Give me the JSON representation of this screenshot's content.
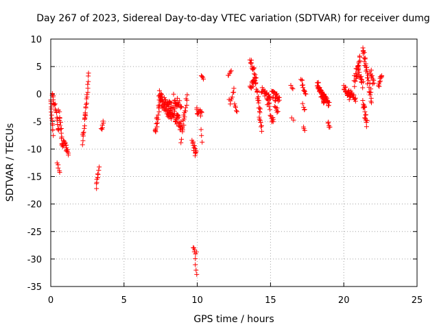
{
  "chart_data": {
    "type": "scatter",
    "title": "Day 267 of 2023, Sidereal Day-to-day VTEC variation (SDTVAR) for receiver dumg",
    "xlabel": "GPS time / hours",
    "ylabel": "SDTVAR / TECUs",
    "xlim": [
      0,
      25
    ],
    "ylim": [
      -35,
      10
    ],
    "xticks": [
      0,
      5,
      10,
      15,
      20,
      25
    ],
    "yticks": [
      10,
      5,
      0,
      -5,
      -10,
      -15,
      -20,
      -25,
      -30,
      -35
    ],
    "xtick_labels": [
      "0",
      "5",
      "10",
      "15",
      "20",
      "25"
    ],
    "ytick_labels": [
      "10",
      "5",
      "0",
      "-5",
      "-10",
      "-15",
      "-20",
      "-25",
      "-30",
      "-35"
    ],
    "grid": true,
    "marker": "+",
    "series": [
      {
        "name": "SDTVAR",
        "color": "#ff0000",
        "tracks": [
          {
            "x_start": 0.0,
            "x_end": 0.15,
            "y_start": -1.0,
            "y_end": -7.0,
            "jitter": 0.6,
            "n": 14
          },
          {
            "x_start": 0.1,
            "x_end": 0.25,
            "y_start": 0.0,
            "y_end": -2.0,
            "jitter": 0.4,
            "n": 8
          },
          {
            "x_start": 0.3,
            "x_end": 0.55,
            "y_start": -2.0,
            "y_end": -7.0,
            "jitter": 0.5,
            "n": 12
          },
          {
            "x_start": 0.45,
            "x_end": 0.6,
            "y_start": -12.5,
            "y_end": -14.5,
            "jitter": 0.3,
            "n": 5
          },
          {
            "x_start": 0.55,
            "x_end": 0.75,
            "y_start": -3.0,
            "y_end": -8.0,
            "jitter": 0.6,
            "n": 12
          },
          {
            "x_start": 0.75,
            "x_end": 1.2,
            "y_start": -8.5,
            "y_end": -10.5,
            "jitter": 0.7,
            "n": 22
          },
          {
            "x_start": 2.15,
            "x_end": 2.4,
            "y_start": -9.0,
            "y_end": -2.5,
            "jitter": 0.5,
            "n": 14
          },
          {
            "x_start": 2.35,
            "x_end": 2.6,
            "y_start": -4.0,
            "y_end": 3.5,
            "jitter": 0.4,
            "n": 14
          },
          {
            "x_start": 3.1,
            "x_end": 3.3,
            "y_start": -17.0,
            "y_end": -13.5,
            "jitter": 0.4,
            "n": 10
          },
          {
            "x_start": 3.45,
            "x_end": 3.6,
            "y_start": -6.5,
            "y_end": -5.0,
            "jitter": 0.3,
            "n": 6
          },
          {
            "x_start": 7.1,
            "x_end": 7.5,
            "y_start": -7.5,
            "y_end": -1.0,
            "jitter": 1.0,
            "n": 20
          },
          {
            "x_start": 7.4,
            "x_end": 8.2,
            "y_start": -0.5,
            "y_end": -3.5,
            "jitter": 1.3,
            "n": 55
          },
          {
            "x_start": 8.0,
            "x_end": 8.9,
            "y_start": -2.0,
            "y_end": -5.5,
            "jitter": 1.3,
            "n": 50
          },
          {
            "x_start": 8.4,
            "x_end": 8.9,
            "y_start": -0.5,
            "y_end": -2.5,
            "jitter": 1.0,
            "n": 18
          },
          {
            "x_start": 8.9,
            "x_end": 9.3,
            "y_start": -8.0,
            "y_end": 0.0,
            "jitter": 1.2,
            "n": 20
          },
          {
            "x_start": 9.65,
            "x_end": 9.95,
            "y_start": -9.0,
            "y_end": -11.0,
            "jitter": 0.7,
            "n": 14
          },
          {
            "x_start": 9.7,
            "x_end": 9.95,
            "y_start": -28.0,
            "y_end": -29.0,
            "jitter": 0.3,
            "n": 6
          },
          {
            "x_start": 9.85,
            "x_end": 9.95,
            "y_start": -30.0,
            "y_end": -33.0,
            "jitter": 0.2,
            "n": 4
          },
          {
            "x_start": 9.95,
            "x_end": 10.3,
            "y_start": -3.0,
            "y_end": -3.5,
            "jitter": 0.6,
            "n": 12
          },
          {
            "x_start": 10.3,
            "x_end": 10.4,
            "y_start": 3.3,
            "y_end": 2.8,
            "jitter": 0.2,
            "n": 4
          },
          {
            "x_start": 10.25,
            "x_end": 10.35,
            "y_start": -6.5,
            "y_end": -8.8,
            "jitter": 0.2,
            "n": 3
          },
          {
            "x_start": 12.1,
            "x_end": 12.3,
            "y_start": 3.5,
            "y_end": 4.0,
            "jitter": 0.3,
            "n": 5
          },
          {
            "x_start": 12.2,
            "x_end": 12.5,
            "y_start": -1.5,
            "y_end": 0.5,
            "jitter": 0.6,
            "n": 8
          },
          {
            "x_start": 12.55,
            "x_end": 12.7,
            "y_start": -2.0,
            "y_end": -3.0,
            "jitter": 0.3,
            "n": 5
          },
          {
            "x_start": 13.6,
            "x_end": 13.9,
            "y_start": 6.5,
            "y_end": 4.0,
            "jitter": 0.6,
            "n": 12
          },
          {
            "x_start": 13.6,
            "x_end": 14.0,
            "y_start": 1.5,
            "y_end": 2.5,
            "jitter": 0.7,
            "n": 16
          },
          {
            "x_start": 13.9,
            "x_end": 14.3,
            "y_start": 3.5,
            "y_end": -3.0,
            "jitter": 0.8,
            "n": 18
          },
          {
            "x_start": 14.2,
            "x_end": 14.4,
            "y_start": -3.0,
            "y_end": -6.5,
            "jitter": 0.5,
            "n": 10
          },
          {
            "x_start": 14.4,
            "x_end": 15.0,
            "y_start": 0.8,
            "y_end": -1.0,
            "jitter": 0.6,
            "n": 22
          },
          {
            "x_start": 14.8,
            "x_end": 15.2,
            "y_start": -1.5,
            "y_end": -5.5,
            "jitter": 0.8,
            "n": 14
          },
          {
            "x_start": 15.1,
            "x_end": 15.6,
            "y_start": 0.0,
            "y_end": -1.0,
            "jitter": 0.8,
            "n": 22
          },
          {
            "x_start": 15.3,
            "x_end": 15.5,
            "y_start": -2.0,
            "y_end": -3.5,
            "jitter": 0.4,
            "n": 6
          },
          {
            "x_start": 16.4,
            "x_end": 16.55,
            "y_start": 1.5,
            "y_end": 1.0,
            "jitter": 0.2,
            "n": 3
          },
          {
            "x_start": 16.45,
            "x_end": 16.55,
            "y_start": -4.3,
            "y_end": -4.6,
            "jitter": 0.2,
            "n": 2
          },
          {
            "x_start": 17.1,
            "x_end": 17.4,
            "y_start": 2.5,
            "y_end": 0.0,
            "jitter": 0.5,
            "n": 12
          },
          {
            "x_start": 17.2,
            "x_end": 17.35,
            "y_start": -2.0,
            "y_end": -3.0,
            "jitter": 0.3,
            "n": 4
          },
          {
            "x_start": 17.25,
            "x_end": 17.35,
            "y_start": -6.0,
            "y_end": -6.5,
            "jitter": 0.2,
            "n": 3
          },
          {
            "x_start": 18.2,
            "x_end": 18.7,
            "y_start": 2.0,
            "y_end": -1.5,
            "jitter": 0.7,
            "n": 40
          },
          {
            "x_start": 18.6,
            "x_end": 19.0,
            "y_start": 0.5,
            "y_end": -2.0,
            "jitter": 0.7,
            "n": 18
          },
          {
            "x_start": 18.9,
            "x_end": 19.05,
            "y_start": -5.0,
            "y_end": -6.0,
            "jitter": 0.3,
            "n": 5
          },
          {
            "x_start": 20.0,
            "x_end": 20.4,
            "y_start": 1.2,
            "y_end": -0.5,
            "jitter": 0.6,
            "n": 18
          },
          {
            "x_start": 20.3,
            "x_end": 20.8,
            "y_start": 0.5,
            "y_end": -1.0,
            "jitter": 0.6,
            "n": 18
          },
          {
            "x_start": 20.7,
            "x_end": 21.1,
            "y_start": 2.0,
            "y_end": 6.5,
            "jitter": 1.2,
            "n": 22
          },
          {
            "x_start": 20.9,
            "x_end": 21.3,
            "y_start": 4.5,
            "y_end": 1.5,
            "jitter": 1.0,
            "n": 16
          },
          {
            "x_start": 21.3,
            "x_end": 21.55,
            "y_start": 8.5,
            "y_end": 4.0,
            "jitter": 1.0,
            "n": 16
          },
          {
            "x_start": 21.3,
            "x_end": 21.6,
            "y_start": -1.5,
            "y_end": -5.5,
            "jitter": 1.0,
            "n": 18
          },
          {
            "x_start": 21.55,
            "x_end": 21.9,
            "y_start": 4.0,
            "y_end": -1.0,
            "jitter": 1.0,
            "n": 18
          },
          {
            "x_start": 21.8,
            "x_end": 22.05,
            "y_start": 4.5,
            "y_end": 2.0,
            "jitter": 0.8,
            "n": 10
          },
          {
            "x_start": 22.35,
            "x_end": 22.6,
            "y_start": 1.5,
            "y_end": 3.5,
            "jitter": 0.6,
            "n": 10
          }
        ]
      }
    ]
  }
}
